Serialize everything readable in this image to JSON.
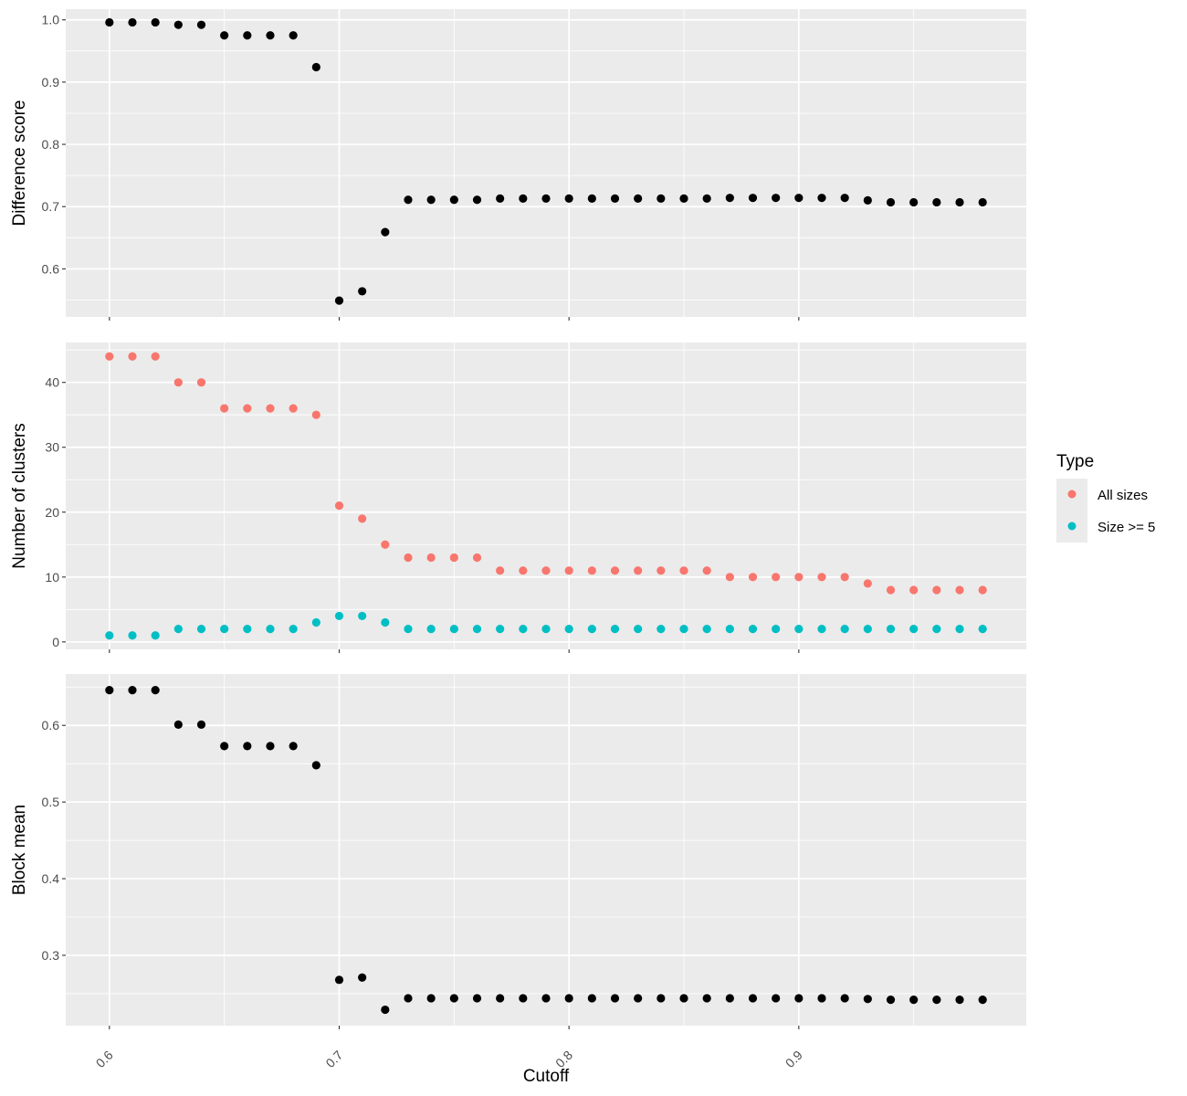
{
  "chart_data": {
    "type": "scatter",
    "xlabel": "Cutoff",
    "x_ticks": [
      "0.6",
      "0.7",
      "0.8",
      "0.9"
    ],
    "x_tick_values": [
      0.6,
      0.7,
      0.8,
      0.9
    ],
    "xlim": [
      0.581,
      0.999
    ],
    "grid": true,
    "x": [
      0.6,
      0.61,
      0.62,
      0.63,
      0.64,
      0.65,
      0.66,
      0.67,
      0.68,
      0.69,
      0.7,
      0.71,
      0.72,
      0.73,
      0.74,
      0.75,
      0.76,
      0.77,
      0.78,
      0.79,
      0.8,
      0.81,
      0.82,
      0.83,
      0.84,
      0.85,
      0.86,
      0.87,
      0.88,
      0.89,
      0.9,
      0.91,
      0.92,
      0.93,
      0.94,
      0.95,
      0.96,
      0.97,
      0.98
    ],
    "panels": [
      {
        "ylabel": "Difference score",
        "ylim": [
          0.5228,
          1.0172
        ],
        "y_ticks": [
          "0.6",
          "0.7",
          "0.8",
          "0.9",
          "1.0"
        ],
        "y_tick_values": [
          0.6,
          0.7,
          0.8,
          0.9,
          1.0
        ],
        "series": [
          {
            "color": "#000000",
            "values": [
              0.996,
              0.996,
              0.996,
              0.992,
              0.992,
              0.975,
              0.975,
              0.975,
              0.975,
              0.924,
              0.549,
              0.564,
              0.659,
              0.711,
              0.711,
              0.711,
              0.711,
              0.713,
              0.713,
              0.713,
              0.713,
              0.713,
              0.713,
              0.713,
              0.713,
              0.713,
              0.713,
              0.714,
              0.714,
              0.714,
              0.714,
              0.714,
              0.714,
              0.71,
              0.707,
              0.707,
              0.707,
              0.707,
              0.707
            ]
          }
        ]
      },
      {
        "ylabel": "Number of clusters",
        "ylim": [
          -1.15,
          46.15
        ],
        "y_ticks": [
          "0",
          "10",
          "20",
          "30",
          "40"
        ],
        "y_tick_values": [
          0,
          10,
          20,
          30,
          40
        ],
        "series": [
          {
            "name": "All sizes",
            "color": "#f8766d",
            "values": [
              44,
              44,
              44,
              40,
              40,
              36,
              36,
              36,
              36,
              35,
              21,
              19,
              15,
              13,
              13,
              13,
              13,
              11,
              11,
              11,
              11,
              11,
              11,
              11,
              11,
              11,
              11,
              10,
              10,
              10,
              10,
              10,
              10,
              9,
              8,
              8,
              8,
              8,
              8
            ]
          },
          {
            "name": "Size >= 5",
            "color": "#00bfc4",
            "values": [
              1,
              1,
              1,
              2,
              2,
              2,
              2,
              2,
              2,
              3,
              4,
              4,
              3,
              2,
              2,
              2,
              2,
              2,
              2,
              2,
              2,
              2,
              2,
              2,
              2,
              2,
              2,
              2,
              2,
              2,
              2,
              2,
              2,
              2,
              2,
              2,
              2,
              2,
              2
            ]
          }
        ]
      },
      {
        "ylabel": "Block mean",
        "ylim": [
          0.2082,
          0.667
        ],
        "y_ticks": [
          "0.3",
          "0.4",
          "0.5",
          "0.6"
        ],
        "y_tick_values": [
          0.3,
          0.4,
          0.5,
          0.6
        ],
        "series": [
          {
            "color": "#000000",
            "values": [
              0.646,
              0.646,
              0.646,
              0.601,
              0.601,
              0.573,
              0.573,
              0.573,
              0.573,
              0.548,
              0.268,
              0.271,
              0.229,
              0.244,
              0.244,
              0.244,
              0.244,
              0.244,
              0.244,
              0.244,
              0.244,
              0.244,
              0.244,
              0.244,
              0.244,
              0.244,
              0.244,
              0.244,
              0.244,
              0.244,
              0.244,
              0.244,
              0.244,
              0.243,
              0.242,
              0.242,
              0.242,
              0.242,
              0.242
            ]
          }
        ]
      }
    ],
    "legend": {
      "title": "Type",
      "placement": "right",
      "entries": [
        {
          "label": "All sizes",
          "color": "#f8766d"
        },
        {
          "label": "Size >= 5",
          "color": "#00bfc4"
        }
      ]
    },
    "panel_background": "#ebebeb",
    "grid_color": "#ffffff"
  }
}
